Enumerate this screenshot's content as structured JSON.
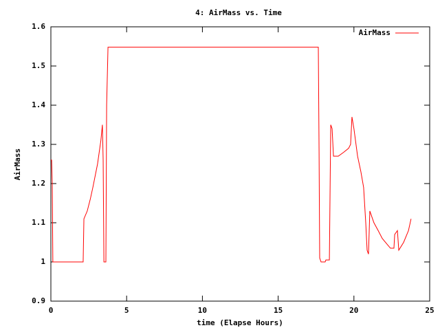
{
  "chart_data": {
    "type": "line",
    "title": "4: AirMass vs. Time",
    "x_label": "time (Elapse Hours)",
    "y_label": "AirMass",
    "x": [
      0,
      0.05,
      0.09,
      0.13,
      2.13,
      2.18,
      2.4,
      2.6,
      2.77,
      3.08,
      3.3,
      3.4,
      3.45,
      3.5,
      3.63,
      3.68,
      3.77,
      17.65,
      17.7,
      17.74,
      17.83,
      18.1,
      18.15,
      18.38,
      18.47,
      18.56,
      18.65,
      18.97,
      19.33,
      19.65,
      19.78,
      19.87,
      20.0,
      20.24,
      20.46,
      20.64,
      20.78,
      20.87,
      20.96,
      21.05,
      21.32,
      21.6,
      21.87,
      22.19,
      22.41,
      22.64,
      22.69,
      22.87,
      22.96,
      23.28,
      23.6,
      23.77
    ],
    "series": [
      {
        "name": "AirMass",
        "color": "#ff0000",
        "values": [
          1.26,
          1.26,
          1.2,
          1.0,
          1.0,
          1.11,
          1.13,
          1.16,
          1.19,
          1.25,
          1.31,
          1.35,
          1.26,
          1.0,
          1.0,
          1.4,
          1.548,
          1.548,
          1.28,
          1.01,
          1.0,
          1.0,
          1.005,
          1.005,
          1.35,
          1.34,
          1.27,
          1.27,
          1.28,
          1.29,
          1.3,
          1.37,
          1.34,
          1.27,
          1.23,
          1.19,
          1.1,
          1.03,
          1.02,
          1.13,
          1.1,
          1.08,
          1.06,
          1.045,
          1.035,
          1.035,
          1.07,
          1.08,
          1.03,
          1.05,
          1.08,
          1.11
        ]
      }
    ],
    "xlim": [
      0,
      25
    ],
    "xticks": [
      0,
      5,
      10,
      15,
      20,
      25
    ],
    "ylim": [
      0.9,
      1.6
    ],
    "yticks": [
      0.9,
      1,
      1.1,
      1.2,
      1.3,
      1.4,
      1.5,
      1.6
    ],
    "legend": "top-right",
    "grid": false
  }
}
